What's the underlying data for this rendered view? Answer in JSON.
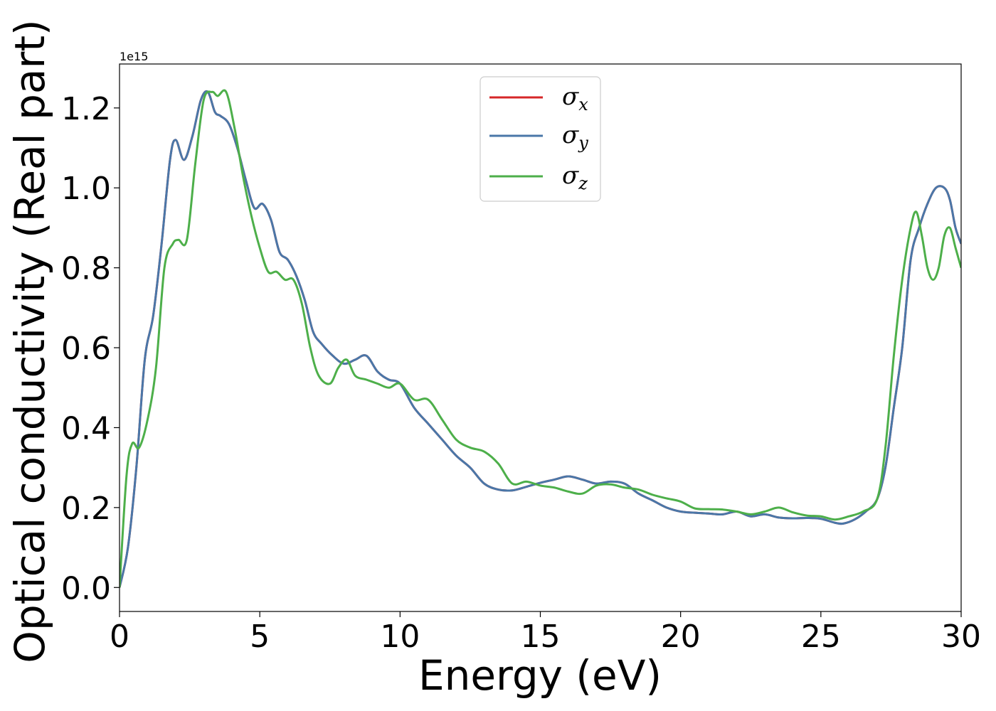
{
  "chart_data": {
    "type": "line",
    "xlabel": "Energy (eV)",
    "ylabel": "Optical conductivity (Real part)",
    "y_offset_label": "1e15",
    "xlim": [
      0,
      30
    ],
    "ylim": [
      -0.06,
      1.31
    ],
    "x_ticks": [
      "0",
      "5",
      "10",
      "15",
      "20",
      "25",
      "30"
    ],
    "y_ticks": [
      "0.0",
      "0.2",
      "0.4",
      "0.6",
      "0.8",
      "1.0",
      "1.2"
    ],
    "x_tick_values": [
      0,
      5,
      10,
      15,
      20,
      25,
      30
    ],
    "y_tick_values": [
      0.0,
      0.2,
      0.4,
      0.6,
      0.8,
      1.0,
      1.2
    ],
    "grid": false,
    "legend_position": "top-center",
    "series": [
      {
        "name": "σx",
        "legend_symbol": "σ",
        "legend_subscript": "x",
        "color": "#d62728",
        "x": [
          0,
          0.3,
          0.6,
          0.9,
          1.2,
          1.5,
          1.8,
          2.0,
          2.3,
          2.6,
          2.9,
          3.15,
          3.4,
          3.6,
          3.9,
          4.2,
          4.5,
          4.8,
          5.1,
          5.4,
          5.7,
          6.0,
          6.3,
          6.6,
          6.9,
          7.2,
          7.6,
          8.0,
          8.4,
          8.8,
          9.2,
          9.6,
          10.0,
          10.5,
          11.0,
          11.5,
          12.0,
          12.5,
          13.0,
          13.5,
          14.0,
          14.5,
          15.0,
          15.5,
          16.0,
          16.5,
          17.0,
          17.5,
          18.0,
          18.5,
          19.0,
          19.5,
          20.0,
          20.5,
          21.0,
          21.5,
          22.0,
          22.5,
          23.0,
          23.5,
          24.0,
          24.5,
          25.0,
          25.5,
          25.8,
          26.2,
          26.6,
          27.0,
          27.3,
          27.6,
          27.9,
          28.2,
          28.5,
          28.8,
          29.1,
          29.4,
          29.6,
          29.8,
          30.0
        ],
        "y": [
          0.0,
          0.1,
          0.3,
          0.57,
          0.68,
          0.86,
          1.07,
          1.12,
          1.07,
          1.13,
          1.22,
          1.24,
          1.19,
          1.18,
          1.16,
          1.1,
          1.02,
          0.95,
          0.96,
          0.92,
          0.84,
          0.82,
          0.78,
          0.72,
          0.64,
          0.61,
          0.58,
          0.56,
          0.57,
          0.58,
          0.54,
          0.52,
          0.51,
          0.45,
          0.41,
          0.37,
          0.33,
          0.3,
          0.26,
          0.245,
          0.243,
          0.252,
          0.262,
          0.27,
          0.278,
          0.27,
          0.26,
          0.265,
          0.26,
          0.235,
          0.218,
          0.2,
          0.19,
          0.187,
          0.185,
          0.183,
          0.19,
          0.178,
          0.183,
          0.175,
          0.173,
          0.174,
          0.172,
          0.162,
          0.16,
          0.17,
          0.19,
          0.22,
          0.3,
          0.45,
          0.6,
          0.82,
          0.9,
          0.96,
          1.0,
          1.0,
          0.97,
          0.9,
          0.86
        ]
      },
      {
        "name": "σy",
        "legend_symbol": "σ",
        "legend_subscript": "y",
        "color": "#4a77a8",
        "x": [
          0,
          0.3,
          0.6,
          0.9,
          1.2,
          1.5,
          1.8,
          2.0,
          2.3,
          2.6,
          2.9,
          3.15,
          3.4,
          3.6,
          3.9,
          4.2,
          4.5,
          4.8,
          5.1,
          5.4,
          5.7,
          6.0,
          6.3,
          6.6,
          6.9,
          7.2,
          7.6,
          8.0,
          8.4,
          8.8,
          9.2,
          9.6,
          10.0,
          10.5,
          11.0,
          11.5,
          12.0,
          12.5,
          13.0,
          13.5,
          14.0,
          14.5,
          15.0,
          15.5,
          16.0,
          16.5,
          17.0,
          17.5,
          18.0,
          18.5,
          19.0,
          19.5,
          20.0,
          20.5,
          21.0,
          21.5,
          22.0,
          22.5,
          23.0,
          23.5,
          24.0,
          24.5,
          25.0,
          25.5,
          25.8,
          26.2,
          26.6,
          27.0,
          27.3,
          27.6,
          27.9,
          28.2,
          28.5,
          28.8,
          29.1,
          29.4,
          29.6,
          29.8,
          30.0
        ],
        "y": [
          0.0,
          0.1,
          0.3,
          0.57,
          0.68,
          0.86,
          1.07,
          1.12,
          1.07,
          1.13,
          1.22,
          1.24,
          1.19,
          1.18,
          1.16,
          1.1,
          1.02,
          0.95,
          0.96,
          0.92,
          0.84,
          0.82,
          0.78,
          0.72,
          0.64,
          0.61,
          0.58,
          0.56,
          0.57,
          0.58,
          0.54,
          0.52,
          0.51,
          0.45,
          0.41,
          0.37,
          0.33,
          0.3,
          0.26,
          0.245,
          0.243,
          0.252,
          0.262,
          0.27,
          0.278,
          0.27,
          0.26,
          0.265,
          0.26,
          0.235,
          0.218,
          0.2,
          0.19,
          0.187,
          0.185,
          0.183,
          0.19,
          0.178,
          0.183,
          0.175,
          0.173,
          0.174,
          0.172,
          0.162,
          0.16,
          0.17,
          0.19,
          0.22,
          0.3,
          0.45,
          0.6,
          0.82,
          0.9,
          0.96,
          1.0,
          1.0,
          0.97,
          0.9,
          0.86
        ]
      },
      {
        "name": "σz",
        "legend_symbol": "σ",
        "legend_subscript": "z",
        "color": "#4daf4a",
        "x": [
          0,
          0.25,
          0.45,
          0.7,
          1.0,
          1.3,
          1.6,
          1.9,
          2.1,
          2.4,
          2.7,
          3.0,
          3.3,
          3.5,
          3.8,
          4.1,
          4.4,
          4.7,
          5.0,
          5.3,
          5.6,
          5.9,
          6.2,
          6.5,
          6.8,
          7.1,
          7.5,
          7.8,
          8.1,
          8.4,
          8.8,
          9.2,
          9.6,
          10.0,
          10.5,
          11.0,
          11.5,
          12.0,
          12.5,
          13.0,
          13.5,
          14.0,
          14.5,
          15.0,
          15.5,
          16.0,
          16.5,
          17.0,
          17.5,
          18.0,
          18.5,
          19.0,
          19.5,
          20.0,
          20.5,
          21.0,
          21.5,
          22.0,
          22.5,
          23.0,
          23.5,
          24.0,
          24.5,
          25.0,
          25.5,
          26.0,
          26.5,
          27.0,
          27.3,
          27.6,
          27.9,
          28.2,
          28.4,
          28.6,
          28.8,
          29.0,
          29.2,
          29.4,
          29.6,
          29.8,
          30.0
        ],
        "y": [
          0.0,
          0.28,
          0.36,
          0.35,
          0.42,
          0.55,
          0.8,
          0.86,
          0.87,
          0.87,
          1.06,
          1.22,
          1.24,
          1.23,
          1.24,
          1.15,
          1.03,
          0.93,
          0.85,
          0.79,
          0.79,
          0.77,
          0.77,
          0.71,
          0.6,
          0.53,
          0.51,
          0.55,
          0.57,
          0.53,
          0.52,
          0.51,
          0.5,
          0.51,
          0.47,
          0.47,
          0.42,
          0.37,
          0.35,
          0.34,
          0.31,
          0.26,
          0.265,
          0.255,
          0.25,
          0.24,
          0.235,
          0.255,
          0.258,
          0.25,
          0.245,
          0.232,
          0.223,
          0.215,
          0.198,
          0.196,
          0.195,
          0.19,
          0.183,
          0.19,
          0.2,
          0.188,
          0.18,
          0.178,
          0.17,
          0.178,
          0.19,
          0.22,
          0.35,
          0.58,
          0.77,
          0.9,
          0.94,
          0.88,
          0.8,
          0.77,
          0.8,
          0.88,
          0.9,
          0.85,
          0.8
        ]
      }
    ]
  }
}
